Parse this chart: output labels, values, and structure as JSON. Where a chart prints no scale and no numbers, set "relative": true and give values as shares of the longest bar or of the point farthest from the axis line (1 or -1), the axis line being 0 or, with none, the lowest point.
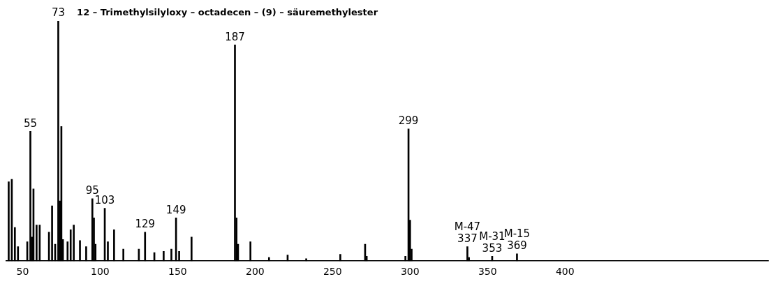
{
  "chart_data": {
    "type": "bar",
    "title": "12 – Trimethylsilyloxy – octadecen – (9) – säuremethylester",
    "relative": true,
    "color": "#000000",
    "x": [
      41,
      43,
      45,
      47,
      53,
      55,
      56,
      57,
      59,
      61,
      67,
      69,
      71,
      73,
      74,
      75,
      76,
      79,
      81,
      83,
      87,
      91,
      95,
      96,
      97,
      103,
      105,
      109,
      115,
      125,
      129,
      135,
      141,
      146,
      149,
      151,
      159,
      187,
      188,
      189,
      197,
      209,
      221,
      233,
      255,
      271,
      272,
      297,
      299,
      300,
      301,
      337,
      338,
      353,
      369
    ],
    "values": [
      0.33,
      0.34,
      0.14,
      0.06,
      0.08,
      0.54,
      0.1,
      0.3,
      0.15,
      0.15,
      0.12,
      0.23,
      0.07,
      1.0,
      0.25,
      0.56,
      0.09,
      0.08,
      0.13,
      0.15,
      0.085,
      0.06,
      0.26,
      0.18,
      0.07,
      0.22,
      0.08,
      0.13,
      0.05,
      0.05,
      0.12,
      0.035,
      0.04,
      0.05,
      0.18,
      0.04,
      0.1,
      0.9,
      0.18,
      0.07,
      0.08,
      0.015,
      0.025,
      0.01,
      0.028,
      0.07,
      0.02,
      0.02,
      0.55,
      0.17,
      0.05,
      0.06,
      0.015,
      0.02,
      0.03
    ],
    "xlim": [
      39,
      531
    ],
    "xticks": [
      50,
      100,
      150,
      200,
      250,
      300,
      350,
      400
    ],
    "grid": false,
    "legend": false,
    "annotations": [
      {
        "text": "55",
        "x": 55,
        "y": 0.54
      },
      {
        "text": "73",
        "x": 73,
        "y": 1.0
      },
      {
        "text": "95",
        "x": 95,
        "y": 0.26
      },
      {
        "text": "103",
        "x": 103,
        "y": 0.22
      },
      {
        "text": "129",
        "x": 129,
        "y": 0.12
      },
      {
        "text": "149",
        "x": 149,
        "y": 0.18
      },
      {
        "text": "187",
        "x": 187,
        "y": 0.9
      },
      {
        "text": "299",
        "x": 299,
        "y": 0.55
      },
      {
        "text": "M-47\n337",
        "x": 337,
        "y": 0.06
      },
      {
        "text": "M-31\n353",
        "x": 353,
        "y": 0.02
      },
      {
        "text": "M-15\n369",
        "x": 369,
        "y": 0.03
      }
    ]
  }
}
